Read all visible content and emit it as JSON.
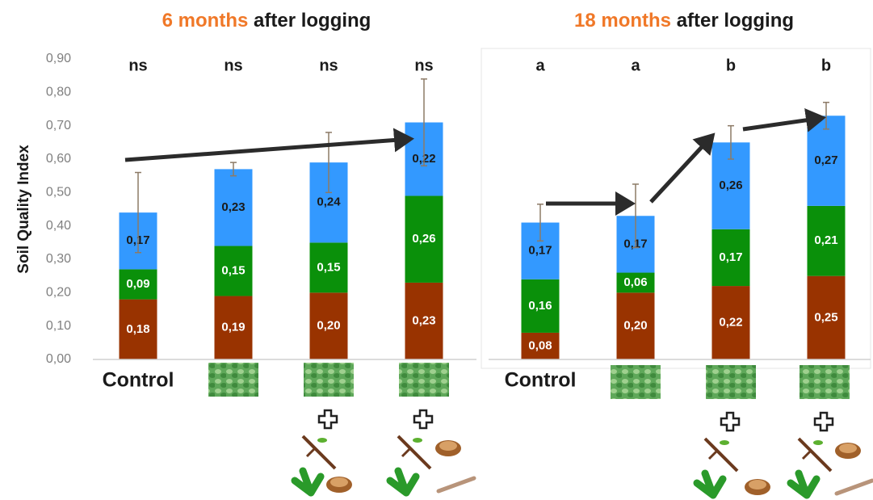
{
  "chart_data": [
    {
      "type": "stacked_bar",
      "title_highlight": "6 months",
      "title": "after logging",
      "title_highlight_color": "#f07828",
      "y_label": "Soil Quality Index",
      "categories": [
        "Control",
        null,
        null,
        null
      ],
      "annotations": [
        "ns",
        "ns",
        "ns",
        "ns"
      ],
      "series": [
        {
          "color": "#993300",
          "label_color": "#ffffff",
          "values": [
            0.18,
            0.19,
            0.2,
            0.23
          ],
          "value_labels": [
            "0,18",
            "0,19",
            "0,20",
            "0,23"
          ]
        },
        {
          "color": "#0a900a",
          "label_color": "#ffffff",
          "values": [
            0.09,
            0.15,
            0.15,
            0.26
          ],
          "value_labels": [
            "0,09",
            "0,15",
            "0,15",
            "0,26"
          ]
        },
        {
          "color": "#3399ff",
          "label_color": "#1a1a1a",
          "values": [
            0.17,
            0.23,
            0.24,
            0.22
          ],
          "value_labels": [
            "0,17",
            "0,23",
            "0,24",
            "0,22"
          ]
        }
      ],
      "errors": [
        0.12,
        0.02,
        0.09,
        0.13
      ],
      "ylim": [
        0,
        0.9
      ],
      "yticks": [
        {
          "value": 0,
          "label": "0,00"
        },
        {
          "value": 0.1,
          "label": "0,10"
        },
        {
          "value": 0.2,
          "label": "0,20"
        },
        {
          "value": 0.3,
          "label": "0,30"
        },
        {
          "value": 0.4,
          "label": "0,40"
        },
        {
          "value": 0.5,
          "label": "0,50"
        },
        {
          "value": 0.6,
          "label": "0,60"
        },
        {
          "value": 0.7,
          "label": "0,70"
        },
        {
          "value": 0.8,
          "label": "0,80"
        },
        {
          "value": 0.9,
          "label": "0,90"
        }
      ]
    },
    {
      "type": "stacked_bar",
      "title_highlight": "18 months",
      "title": "after logging",
      "title_highlight_color": "#f07828",
      "categories": [
        "Control",
        null,
        null,
        null
      ],
      "annotations": [
        "a",
        "a",
        "b",
        "b"
      ],
      "series": [
        {
          "color": "#993300",
          "label_color": "#ffffff",
          "values": [
            0.08,
            0.2,
            0.22,
            0.25
          ],
          "value_labels": [
            "0,08",
            "0,20",
            "0,22",
            "0,25"
          ]
        },
        {
          "color": "#0a900a",
          "label_color": "#ffffff",
          "values": [
            0.16,
            0.06,
            0.17,
            0.21
          ],
          "value_labels": [
            "0,16",
            "0,06",
            "0,17",
            "0,21"
          ]
        },
        {
          "color": "#3399ff",
          "label_color": "#1a1a1a",
          "values": [
            0.17,
            0.17,
            0.26,
            0.27
          ],
          "value_labels": [
            "0,17",
            "0,17",
            "0,26",
            "0,27"
          ]
        }
      ],
      "errors": [
        0.055,
        0.095,
        0.05,
        0.04
      ],
      "ylim": [
        0,
        0.9
      ]
    }
  ]
}
